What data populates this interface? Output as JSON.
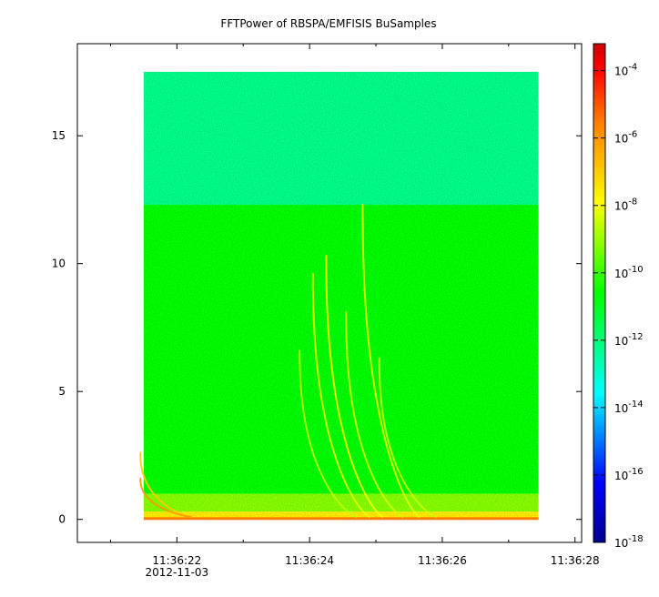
{
  "chart_data": {
    "type": "heatmap",
    "title": "FFTPower of RBSPA/EMFISIS  BuSamples",
    "x_axis": {
      "type": "time",
      "date_label": "2012-11-03",
      "tick_labels": [
        "11:36:22",
        "11:36:24",
        "11:36:26",
        "11:36:28"
      ],
      "tick_values_s": [
        22,
        24,
        26,
        28
      ],
      "minor_tick_values_s": [
        21,
        23,
        25,
        27
      ],
      "range_s": [
        20.5,
        28.1
      ]
    },
    "y_axis": {
      "tick_labels": [
        "0",
        "5",
        "10",
        "15"
      ],
      "tick_values": [
        0,
        5,
        10,
        15
      ],
      "range": [
        -0.9,
        18.6
      ]
    },
    "colorbar": {
      "scale": "log",
      "range_exp": [
        -18,
        -3.2
      ],
      "tick_exponents": [
        -4,
        -6,
        -8,
        -10,
        -12,
        -14,
        -16,
        -18
      ],
      "tick_base": "10",
      "colors": [
        "#00008f",
        "#0000ff",
        "#00ffff",
        "#00ff00",
        "#ffff00",
        "#ff8000",
        "#ff0000",
        "#d00000"
      ]
    },
    "data_extent": {
      "x_s": [
        21.5,
        27.45
      ],
      "y": [
        0,
        17.5
      ]
    },
    "background_levels_exp": [
      {
        "y_from": 12.3,
        "y_to": 17.5,
        "exp": -12.2
      },
      {
        "y_from": 1.0,
        "y_to": 12.3,
        "exp": -10.6
      },
      {
        "y_from": 0.3,
        "y_to": 1.0,
        "exp": -9.2
      },
      {
        "y_from": 0.0,
        "y_to": 0.3,
        "exp": -7.6
      }
    ],
    "whistlers": [
      {
        "x0_s": 21.45,
        "y_top": 2.5,
        "exp": -7.0
      },
      {
        "x0_s": 21.45,
        "y_top": 1.5,
        "exp": -6.0
      },
      {
        "x0_s": 23.85,
        "y_top": 6.5,
        "exp": -8.6
      },
      {
        "x0_s": 24.05,
        "y_top": 9.5,
        "exp": -8.2
      },
      {
        "x0_s": 24.25,
        "y_top": 10.2,
        "exp": -8.0
      },
      {
        "x0_s": 24.55,
        "y_top": 8.0,
        "exp": -8.4
      },
      {
        "x0_s": 24.8,
        "y_top": 12.2,
        "exp": -8.2
      },
      {
        "x0_s": 25.05,
        "y_top": 6.2,
        "exp": -8.5
      }
    ]
  }
}
